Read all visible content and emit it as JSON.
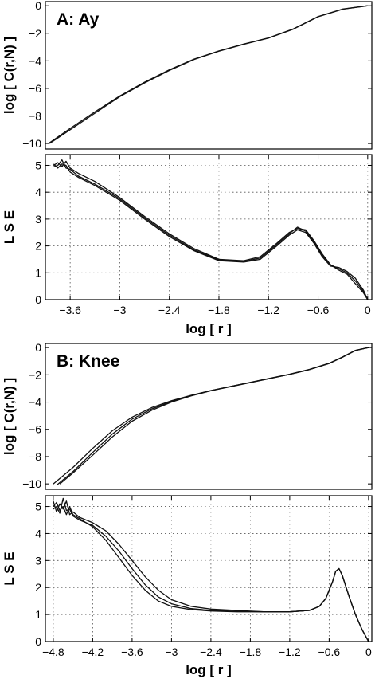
{
  "chart_data": [
    {
      "type": "line",
      "panel_title": "A: Ay",
      "xlabel": "",
      "ylabel": "log [ C(r,N) ]",
      "xlim": [
        -3.9,
        0.05
      ],
      "ylim": [
        -10.4,
        0.3
      ],
      "xticks": [],
      "xtick_labels": [],
      "yticks": [
        0,
        -2,
        -4,
        -6,
        -8,
        -10
      ],
      "ytick_labels": [
        "0",
        "−2",
        "−4",
        "−6",
        "−8",
        "−10"
      ],
      "grid": false,
      "series": [
        {
          "x": [
            -3.85,
            -3.6,
            -3.3,
            -3.0,
            -2.7,
            -2.4,
            -2.1,
            -1.8,
            -1.5,
            -1.2,
            -0.9,
            -0.6,
            -0.3,
            0.0
          ],
          "y": [
            -10.0,
            -9.0,
            -7.8,
            -6.6,
            -5.6,
            -4.7,
            -3.9,
            -3.3,
            -2.8,
            -2.35,
            -1.7,
            -0.8,
            -0.25,
            0.0
          ]
        },
        {
          "x": [
            -3.85,
            -3.6,
            -3.3,
            -3.0,
            -2.7,
            -2.4,
            -2.1,
            -1.8,
            -1.5,
            -1.2,
            -0.9,
            -0.6,
            -0.3,
            0.0
          ],
          "y": [
            -9.95,
            -8.9,
            -7.7,
            -6.55,
            -5.55,
            -4.65,
            -3.87,
            -3.28,
            -2.78,
            -2.33,
            -1.68,
            -0.78,
            -0.24,
            0.0
          ]
        }
      ]
    },
    {
      "type": "line",
      "xlabel": "log [ r ]",
      "ylabel": "L S E",
      "xlim": [
        -3.9,
        0.05
      ],
      "ylim": [
        0,
        5.4
      ],
      "xticks": [
        -3.6,
        -3.0,
        -2.4,
        -1.8,
        -1.2,
        -0.6,
        0
      ],
      "xtick_labels": [
        "−3.6",
        "−3",
        "−2.4",
        "−1.8",
        "−1.2",
        "−0.6",
        "0"
      ],
      "yticks": [
        0,
        1,
        2,
        3,
        4,
        5
      ],
      "ytick_labels": [
        "0",
        "1",
        "2",
        "3",
        "4",
        "5"
      ],
      "grid": true,
      "series": [
        {
          "x": [
            -3.8,
            -3.75,
            -3.7,
            -3.65,
            -3.6,
            -3.5,
            -3.3,
            -3.0,
            -2.7,
            -2.4,
            -2.1,
            -1.8,
            -1.5,
            -1.3,
            -1.1,
            -0.95,
            -0.85,
            -0.75,
            -0.65,
            -0.55,
            -0.45,
            -0.35,
            -0.25,
            -0.15,
            -0.05,
            0.0
          ],
          "y": [
            5.0,
            5.1,
            4.95,
            5.15,
            4.9,
            4.7,
            4.4,
            3.8,
            3.1,
            2.45,
            1.9,
            1.5,
            1.45,
            1.6,
            2.1,
            2.5,
            2.65,
            2.6,
            2.2,
            1.7,
            1.3,
            1.15,
            1.0,
            0.7,
            0.3,
            0.0
          ]
        },
        {
          "x": [
            -3.8,
            -3.75,
            -3.7,
            -3.65,
            -3.6,
            -3.5,
            -3.3,
            -3.0,
            -2.7,
            -2.4,
            -2.1,
            -1.8,
            -1.5,
            -1.3,
            -1.1,
            -0.95,
            -0.85,
            -0.75,
            -0.65,
            -0.55,
            -0.45,
            -0.35,
            -0.25,
            -0.15,
            -0.05,
            0.0
          ],
          "y": [
            4.95,
            5.0,
            5.2,
            4.9,
            4.85,
            4.6,
            4.3,
            3.75,
            3.05,
            2.4,
            1.85,
            1.48,
            1.42,
            1.55,
            2.05,
            2.45,
            2.7,
            2.55,
            2.15,
            1.65,
            1.3,
            1.1,
            0.95,
            0.6,
            0.25,
            0.0
          ]
        },
        {
          "x": [
            -3.8,
            -3.75,
            -3.7,
            -3.65,
            -3.6,
            -3.5,
            -3.3,
            -3.0,
            -2.7,
            -2.4,
            -2.1,
            -1.8,
            -1.5,
            -1.3,
            -1.1,
            -0.95,
            -0.85,
            -0.75,
            -0.65,
            -0.55,
            -0.45,
            -0.35,
            -0.25,
            -0.15,
            -0.05,
            0.0
          ],
          "y": [
            5.05,
            4.9,
            5.05,
            5.0,
            4.75,
            4.55,
            4.25,
            3.7,
            3.0,
            2.35,
            1.82,
            1.45,
            1.4,
            1.5,
            2.0,
            2.4,
            2.6,
            2.5,
            2.1,
            1.6,
            1.25,
            1.2,
            1.05,
            0.8,
            0.35,
            0.0
          ]
        }
      ]
    },
    {
      "type": "line",
      "panel_title": "B: Knee",
      "xlabel": "",
      "ylabel": "log [ C(r,N) ]",
      "xlim": [
        -4.92,
        0.05
      ],
      "ylim": [
        -10.4,
        0.3
      ],
      "xticks": [],
      "xtick_labels": [],
      "yticks": [
        0,
        -2,
        -4,
        -6,
        -8,
        -10
      ],
      "ytick_labels": [
        "0",
        "−2",
        "−4",
        "−6",
        "−8",
        "−10"
      ],
      "grid": false,
      "series": [
        {
          "x": [
            -4.8,
            -4.5,
            -4.2,
            -3.9,
            -3.6,
            -3.3,
            -3.0,
            -2.7,
            -2.4,
            -2.1,
            -1.8,
            -1.5,
            -1.2,
            -0.9,
            -0.6,
            -0.4,
            -0.2,
            0.0
          ],
          "y": [
            -10.0,
            -8.8,
            -7.4,
            -6.1,
            -5.1,
            -4.4,
            -3.9,
            -3.5,
            -3.15,
            -2.85,
            -2.55,
            -2.25,
            -1.95,
            -1.6,
            -1.15,
            -0.7,
            -0.2,
            0.0
          ]
        },
        {
          "x": [
            -4.75,
            -4.5,
            -4.2,
            -3.9,
            -3.6,
            -3.3,
            -3.0,
            -2.7,
            -2.4,
            -2.1,
            -1.8,
            -1.5,
            -1.2,
            -0.9,
            -0.6,
            -0.4,
            -0.2,
            0.0
          ],
          "y": [
            -10.1,
            -9.1,
            -7.7,
            -6.35,
            -5.25,
            -4.5,
            -3.95,
            -3.52,
            -3.16,
            -2.86,
            -2.56,
            -2.26,
            -1.96,
            -1.61,
            -1.16,
            -0.71,
            -0.21,
            0.0
          ]
        },
        {
          "x": [
            -4.7,
            -4.5,
            -4.2,
            -3.9,
            -3.6,
            -3.3,
            -3.0,
            -2.7,
            -2.4,
            -2.1,
            -1.8,
            -1.5,
            -1.2,
            -0.9,
            -0.6,
            -0.4,
            -0.2,
            0.0
          ],
          "y": [
            -10.0,
            -9.2,
            -7.9,
            -6.55,
            -5.4,
            -4.6,
            -4.0,
            -3.55,
            -3.17,
            -2.87,
            -2.57,
            -2.27,
            -1.97,
            -1.62,
            -1.17,
            -0.72,
            -0.22,
            0.0
          ]
        }
      ]
    },
    {
      "type": "line",
      "xlabel": "log [ r ]",
      "ylabel": "L S E",
      "xlim": [
        -4.92,
        0.05
      ],
      "ylim": [
        0,
        5.4
      ],
      "xticks": [
        -4.8,
        -4.2,
        -3.6,
        -3.0,
        -2.4,
        -1.8,
        -1.2,
        -0.6,
        0
      ],
      "xtick_labels": [
        "−4.8",
        "−4.2",
        "−3.6",
        "−3",
        "−2.4",
        "−1.8",
        "−1.2",
        "−0.6",
        "0"
      ],
      "yticks": [
        0,
        1,
        2,
        3,
        4,
        5
      ],
      "ytick_labels": [
        "0",
        "1",
        "2",
        "3",
        "4",
        "5"
      ],
      "grid": true,
      "series": [
        {
          "x": [
            -4.8,
            -4.75,
            -4.7,
            -4.65,
            -4.6,
            -4.55,
            -4.5,
            -4.4,
            -4.2,
            -4.0,
            -3.8,
            -3.6,
            -3.4,
            -3.2,
            -3.0,
            -2.7,
            -2.4,
            -2.0,
            -1.6,
            -1.2,
            -0.9,
            -0.75,
            -0.65,
            -0.55,
            -0.5,
            -0.45,
            -0.4,
            -0.3,
            -0.2,
            -0.1,
            0.0
          ],
          "y": [
            5.2,
            4.8,
            5.1,
            4.9,
            5.2,
            4.7,
            4.8,
            4.6,
            4.4,
            4.1,
            3.6,
            3.0,
            2.4,
            1.9,
            1.55,
            1.3,
            1.2,
            1.15,
            1.1,
            1.1,
            1.15,
            1.3,
            1.6,
            2.2,
            2.6,
            2.7,
            2.45,
            1.7,
            1.0,
            0.45,
            0.0
          ]
        },
        {
          "x": [
            -4.8,
            -4.75,
            -4.7,
            -4.65,
            -4.6,
            -4.55,
            -4.5,
            -4.4,
            -4.2,
            -4.0,
            -3.8,
            -3.6,
            -3.4,
            -3.2,
            -3.0,
            -2.7,
            -2.4,
            -2.0,
            -1.6,
            -1.2,
            -0.9,
            -0.75,
            -0.65,
            -0.55,
            -0.5,
            -0.45,
            -0.4,
            -0.3,
            -0.2,
            -0.1,
            0.0
          ],
          "y": [
            4.9,
            5.0,
            4.75,
            5.3,
            4.85,
            4.9,
            4.65,
            4.5,
            4.3,
            3.9,
            3.35,
            2.7,
            2.1,
            1.65,
            1.4,
            1.22,
            1.15,
            1.12,
            1.1,
            1.1,
            1.15,
            1.3,
            1.6,
            2.2,
            2.6,
            2.7,
            2.45,
            1.7,
            1.0,
            0.45,
            0.0
          ]
        },
        {
          "x": [
            -4.8,
            -4.75,
            -4.7,
            -4.65,
            -4.6,
            -4.55,
            -4.5,
            -4.4,
            -4.2,
            -4.0,
            -3.8,
            -3.6,
            -3.4,
            -3.2,
            -3.0,
            -2.7,
            -2.4,
            -2.0,
            -1.6,
            -1.2,
            -0.9,
            -0.75,
            -0.65,
            -0.55,
            -0.5,
            -0.45,
            -0.4,
            -0.3,
            -0.2,
            -0.1,
            0.0
          ],
          "y": [
            5.0,
            5.15,
            4.85,
            5.0,
            4.7,
            5.0,
            4.7,
            4.55,
            4.25,
            3.75,
            3.1,
            2.45,
            1.9,
            1.5,
            1.3,
            1.18,
            1.13,
            1.1,
            1.1,
            1.1,
            1.15,
            1.3,
            1.6,
            2.2,
            2.6,
            2.7,
            2.45,
            1.7,
            1.0,
            0.45,
            0.0
          ]
        }
      ]
    }
  ]
}
